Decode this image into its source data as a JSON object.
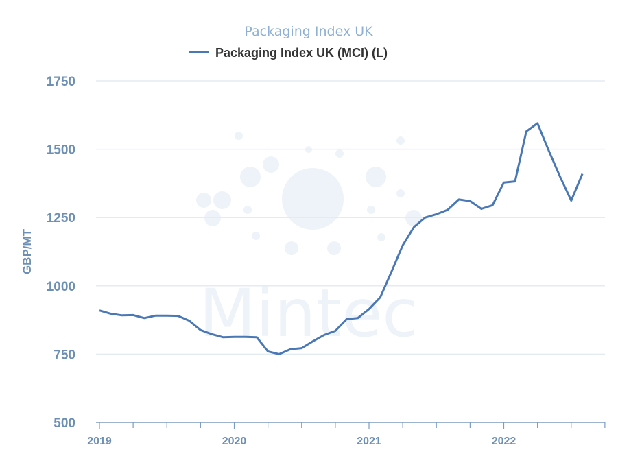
{
  "chart_data": {
    "type": "line",
    "title": "Packaging Index UK",
    "watermark": "Mintec",
    "xlabel": "",
    "ylabel": "GBP/MT",
    "ylim": [
      500,
      1750
    ],
    "yticks": [
      500,
      750,
      1000,
      1250,
      1500,
      1750
    ],
    "xticks": [
      "2019",
      "2020",
      "2021",
      "2022"
    ],
    "x_start": "2019-01",
    "x_unit": "month",
    "grid": true,
    "legend_position": "top",
    "colors": {
      "series": "#4a78b5",
      "grid": "#e3ebf3",
      "axis": "#7b9cc4"
    },
    "series": [
      {
        "name": "Packaging Index UK (MCI) (L)",
        "values": [
          910,
          898,
          892,
          893,
          882,
          891,
          891,
          890,
          872,
          838,
          823,
          812,
          813,
          813,
          812,
          760,
          750,
          768,
          772,
          797,
          820,
          835,
          878,
          882,
          915,
          958,
          1052,
          1148,
          1215,
          1250,
          1262,
          1278,
          1316,
          1310,
          1282,
          1295,
          1378,
          1382,
          1565,
          1595,
          1495,
          1400,
          1312,
          1410
        ]
      }
    ]
  }
}
